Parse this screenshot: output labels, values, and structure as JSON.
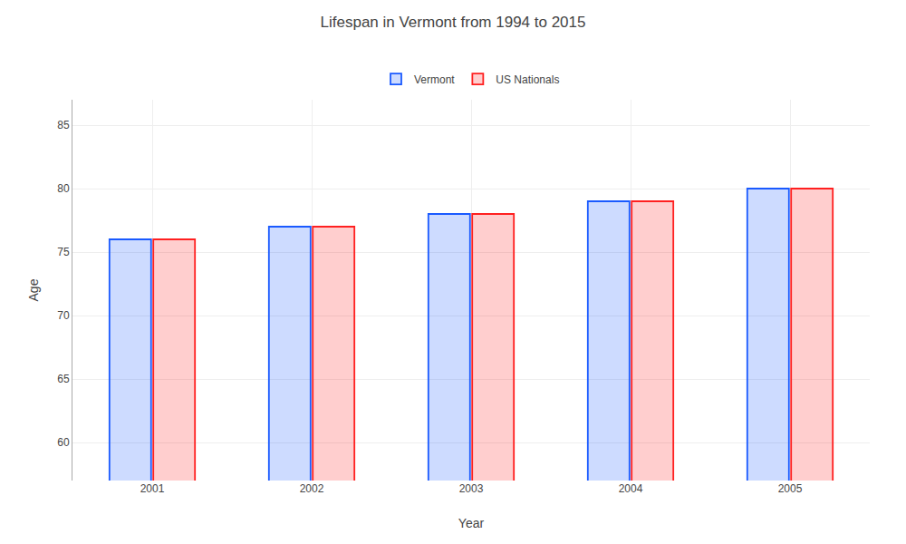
{
  "chart_data": {
    "type": "bar",
    "title": "Lifespan in Vermont from 1994 to 2015",
    "xlabel": "Year",
    "ylabel": "Age",
    "categories": [
      "2001",
      "2002",
      "2003",
      "2004",
      "2005"
    ],
    "series": [
      {
        "name": "Vermont",
        "color": "#1a5aff",
        "values": [
          76,
          77,
          78,
          79,
          80
        ]
      },
      {
        "name": "US Nationals",
        "color": "#ff2020",
        "values": [
          76,
          77,
          78,
          79,
          80
        ]
      }
    ],
    "ylim": [
      57,
      87
    ],
    "yticks": [
      60,
      65,
      70,
      75,
      80,
      85
    ],
    "grid": true,
    "legend": "top"
  }
}
